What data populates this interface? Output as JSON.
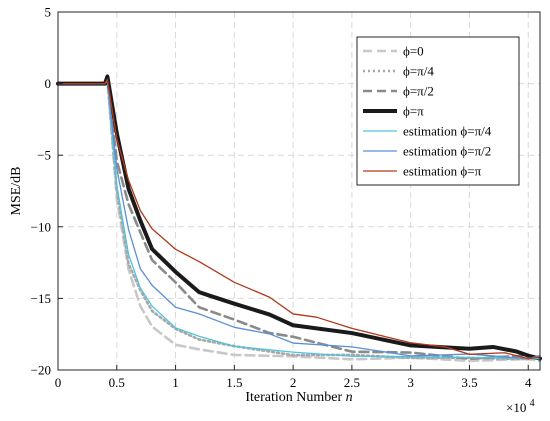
{
  "chart_data": {
    "type": "line",
    "xlabel": "Iteration Number",
    "xlabel_var": "n",
    "ylabel": "MSE/dB",
    "x_multiplier": "×10",
    "x_multiplier_exp": "4",
    "xlim": [
      0,
      41000
    ],
    "ylim": [
      -20,
      5
    ],
    "grid": true,
    "legend_position": "top-right",
    "x_ticks": [
      0,
      5000,
      10000,
      15000,
      20000,
      25000,
      30000,
      35000,
      40000
    ],
    "x_tick_labels": [
      "0",
      "0.5",
      "1",
      "1.5",
      "2",
      "2.5",
      "3",
      "3.5",
      "4"
    ],
    "y_ticks": [
      -20,
      -15,
      -10,
      -5,
      0,
      5
    ],
    "y_tick_labels": [
      "−20",
      "−15",
      "−10",
      "−5",
      "0",
      "5"
    ],
    "series": [
      {
        "name": "ϕ=0",
        "color": "#c8c8c8",
        "style": "dashed",
        "x": [
          0,
          3000,
          4000,
          4200,
          5000,
          6000,
          7000,
          8000,
          10000,
          12000,
          15000,
          20000,
          25000,
          30000,
          35000,
          40000,
          41000
        ],
        "y": [
          0,
          0,
          0,
          0.3,
          -8,
          -13,
          -15.5,
          -17,
          -18.2,
          -18.6,
          -18.9,
          -19.1,
          -19.2,
          -19.2,
          -19.3,
          -19.3,
          -19.3
        ]
      },
      {
        "name": "ϕ=π/4",
        "color": "#a8a8a8",
        "style": "dotted",
        "x": [
          0,
          3000,
          4000,
          4200,
          5000,
          6000,
          7000,
          8000,
          10000,
          12000,
          15000,
          20000,
          25000,
          30000,
          35000,
          40000,
          41000
        ],
        "y": [
          0,
          0,
          0,
          0.3,
          -7.5,
          -12.5,
          -14.5,
          -15.8,
          -17.2,
          -17.8,
          -18.4,
          -18.9,
          -19.0,
          -19.1,
          -19.2,
          -19.2,
          -19.2
        ]
      },
      {
        "name": "ϕ=π/2",
        "color": "#8a8a8a",
        "style": "dashed",
        "x": [
          0,
          3000,
          4000,
          4200,
          5000,
          6000,
          7000,
          8000,
          10000,
          12000,
          15000,
          18000,
          20000,
          25000,
          30000,
          35000,
          40000,
          41000
        ],
        "y": [
          0,
          0,
          0,
          0.4,
          -5.5,
          -8.3,
          -10.5,
          -12.2,
          -14.0,
          -15.5,
          -16.6,
          -17.3,
          -17.8,
          -18.6,
          -18.9,
          -19.1,
          -19.1,
          -19.2
        ]
      },
      {
        "name": "ϕ=π",
        "color": "#1a1a1a",
        "style": "solid-thick",
        "x": [
          0,
          3000,
          4000,
          4200,
          5000,
          6000,
          7000,
          8000,
          10000,
          12000,
          13000,
          15000,
          18000,
          20000,
          25000,
          30000,
          35000,
          37000,
          39000,
          40000,
          41000
        ],
        "y": [
          0,
          0,
          0,
          0.5,
          -3.5,
          -7.3,
          -9.6,
          -11.5,
          -13.2,
          -14.5,
          -14.9,
          -15.3,
          -16.2,
          -16.8,
          -17.5,
          -18.2,
          -18.6,
          -18.3,
          -18.8,
          -18.9,
          -19.3
        ]
      },
      {
        "name": "estimation ϕ=π/4",
        "color": "#4fc3e0",
        "style": "solid",
        "x": [
          0,
          3000,
          4000,
          4200,
          5000,
          6000,
          7000,
          8000,
          10000,
          12000,
          15000,
          20000,
          25000,
          30000,
          35000,
          40000,
          41000
        ],
        "y": [
          0,
          0,
          0,
          0.2,
          -7.0,
          -12.0,
          -14.2,
          -15.6,
          -17.0,
          -17.7,
          -18.3,
          -18.8,
          -19.0,
          -19.1,
          -19.1,
          -19.2,
          -19.2
        ]
      },
      {
        "name": "estimation ϕ=π/2",
        "color": "#5a8fd6",
        "style": "solid",
        "x": [
          0,
          3000,
          4000,
          4200,
          5000,
          6000,
          7000,
          8000,
          10000,
          12000,
          15000,
          18000,
          20000,
          25000,
          30000,
          35000,
          40000,
          41000
        ],
        "y": [
          0,
          0,
          0,
          0.2,
          -5.8,
          -10.3,
          -12.8,
          -14.2,
          -15.5,
          -16.2,
          -16.9,
          -17.6,
          -18.0,
          -18.5,
          -18.9,
          -19.0,
          -19.1,
          -19.1
        ]
      },
      {
        "name": "estimation ϕ=π",
        "color": "#b03a1a",
        "style": "solid",
        "x": [
          0,
          3000,
          4000,
          4200,
          5000,
          6000,
          7000,
          8000,
          10000,
          12000,
          15000,
          18000,
          20000,
          22000,
          25000,
          28000,
          30000,
          33000,
          35000,
          38000,
          40000,
          41000
        ],
        "y": [
          0,
          0,
          0,
          0.3,
          -3.8,
          -6.8,
          -8.8,
          -10.2,
          -11.5,
          -12.5,
          -13.8,
          -15.0,
          -16.0,
          -16.4,
          -17.0,
          -17.8,
          -18.0,
          -18.5,
          -18.8,
          -18.9,
          -19.1,
          -19.2
        ]
      }
    ]
  }
}
